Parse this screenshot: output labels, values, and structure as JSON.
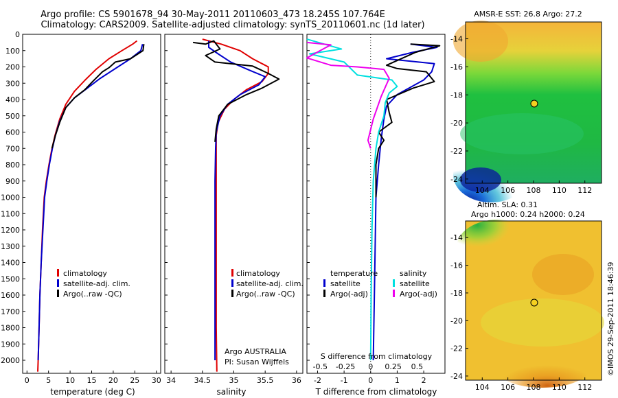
{
  "header": {
    "line1": "Argo profile: CS 5901678_94 30-May-2011 20110603_473 18.245S 107.764E",
    "line2": "Climatology: CARS2009. Satellite-adjusted climatology: synTS_20110601.nc (1d later)"
  },
  "credit": "©IMOS 29-Sep-2011 18:46:39",
  "colors": {
    "climatology": "#e00000",
    "satellite": "#0000cc",
    "argo": "#000000",
    "satellite_salinity": "#00e0e0",
    "argo_salinity": "#ee00ee"
  },
  "depth_axis": {
    "ylim": [
      0,
      2080
    ],
    "ticks": [
      0,
      100,
      200,
      300,
      400,
      500,
      600,
      700,
      800,
      900,
      1000,
      1100,
      1200,
      1300,
      1400,
      1500,
      1600,
      1700,
      1800,
      1900,
      2000
    ]
  },
  "chart_data": [
    {
      "type": "line",
      "panel": "temperature",
      "xlabel": "temperature (deg C)",
      "xlim": [
        -1,
        31
      ],
      "xticks": [
        0,
        5,
        10,
        15,
        20,
        25,
        30
      ],
      "legend": [
        "climatology",
        "satellite-adj. clim.",
        "Argo(..raw -QC)"
      ],
      "series": [
        {
          "name": "climatology",
          "color_key": "climatology",
          "points": [
            [
              25.5,
              40
            ],
            [
              24.5,
              60
            ],
            [
              22,
              100
            ],
            [
              19,
              150
            ],
            [
              16,
              215
            ],
            [
              13.5,
              280
            ],
            [
              11,
              350
            ],
            [
              9,
              430
            ],
            [
              7.6,
              520
            ],
            [
              6.5,
              620
            ],
            [
              5.8,
              700
            ],
            [
              5.1,
              800
            ],
            [
              4.5,
              900
            ],
            [
              4.0,
              1000
            ],
            [
              3.6,
              1200
            ],
            [
              3.3,
              1400
            ],
            [
              3.0,
              1600
            ],
            [
              2.8,
              1800
            ],
            [
              2.6,
              2000
            ],
            [
              2.5,
              2070
            ]
          ]
        },
        {
          "name": "satellite-adj. clim.",
          "color_key": "satellite",
          "points": [
            [
              26.8,
              60
            ],
            [
              26.4,
              100
            ],
            [
              24,
              150
            ],
            [
              20.5,
              210
            ],
            [
              17,
              270
            ],
            [
              14,
              330
            ],
            [
              11,
              390
            ],
            [
              9,
              450
            ],
            [
              7.5,
              540
            ],
            [
              6.6,
              620
            ],
            [
              5.9,
              700
            ],
            [
              5.2,
              800
            ],
            [
              4.6,
              900
            ],
            [
              4.1,
              1000
            ],
            [
              3.7,
              1200
            ],
            [
              3.3,
              1400
            ],
            [
              3.0,
              1600
            ],
            [
              2.8,
              1800
            ],
            [
              2.6,
              2000
            ]
          ]
        },
        {
          "name": "Argo(..raw -QC)",
          "color_key": "argo",
          "points": [
            [
              27.1,
              60
            ],
            [
              26.9,
              100
            ],
            [
              24,
              150
            ],
            [
              20.5,
              170
            ],
            [
              19,
              205
            ],
            [
              17.5,
              230
            ],
            [
              15.2,
              290
            ],
            [
              13.4,
              340
            ],
            [
              11,
              390
            ],
            [
              9,
              450
            ],
            [
              7.6,
              540
            ],
            [
              6.6,
              620
            ],
            [
              5.8,
              700
            ]
          ]
        }
      ]
    },
    {
      "type": "line",
      "panel": "salinity",
      "xlabel": "salinity",
      "xlim": [
        33.9,
        36.1
      ],
      "xticks": [
        34,
        34.5,
        35,
        35.5,
        36
      ],
      "legend": [
        "climatology",
        "satellite-adj. clim.",
        "Argo(..raw -QC)"
      ],
      "annotation": [
        "Argo AUSTRALIA",
        "PI: Susan Wijffels"
      ],
      "series": [
        {
          "name": "climatology",
          "color_key": "climatology",
          "points": [
            [
              34.5,
              30
            ],
            [
              34.8,
              60
            ],
            [
              35.1,
              100
            ],
            [
              35.3,
              150
            ],
            [
              35.55,
              200
            ],
            [
              35.55,
              240
            ],
            [
              35.45,
              290
            ],
            [
              35.2,
              340
            ],
            [
              35.0,
              400
            ],
            [
              34.85,
              460
            ],
            [
              34.75,
              540
            ],
            [
              34.72,
              620
            ],
            [
              34.72,
              700
            ],
            [
              34.72,
              900
            ],
            [
              34.72,
              1200
            ],
            [
              34.72,
              1500
            ],
            [
              34.72,
              1800
            ],
            [
              34.73,
              2070
            ]
          ]
        },
        {
          "name": "satellite-adj. clim.",
          "color_key": "satellite",
          "points": [
            [
              34.6,
              40
            ],
            [
              34.6,
              80
            ],
            [
              34.75,
              120
            ],
            [
              34.95,
              170
            ],
            [
              35.25,
              220
            ],
            [
              35.5,
              260
            ],
            [
              35.4,
              310
            ],
            [
              35.1,
              370
            ],
            [
              34.9,
              430
            ],
            [
              34.78,
              500
            ],
            [
              34.72,
              600
            ],
            [
              34.71,
              700
            ],
            [
              34.7,
              900
            ],
            [
              34.7,
              1200
            ],
            [
              34.7,
              1500
            ],
            [
              34.7,
              1800
            ],
            [
              34.7,
              2000
            ]
          ]
        },
        {
          "name": "Argo(..raw -QC)",
          "color_key": "argo",
          "points": [
            [
              34.35,
              50
            ],
            [
              34.55,
              60
            ],
            [
              34.68,
              40
            ],
            [
              34.78,
              90
            ],
            [
              34.55,
              130
            ],
            [
              34.7,
              170
            ],
            [
              35.3,
              195
            ],
            [
              35.55,
              240
            ],
            [
              35.72,
              275
            ],
            [
              35.45,
              330
            ],
            [
              35.2,
              370
            ],
            [
              34.9,
              430
            ],
            [
              34.76,
              500
            ],
            [
              34.72,
              580
            ],
            [
              34.7,
              660
            ]
          ]
        }
      ]
    },
    {
      "type": "line",
      "panel": "difference",
      "xlabel_top": "S difference from climatology",
      "xlabel": "T difference from climatology",
      "xlim": [
        -2.4,
        2.8
      ],
      "xticks_T": [
        -2,
        -1,
        0,
        1,
        2
      ],
      "xticks_S": [
        "-0.5",
        "-0.25",
        "0",
        "0.25",
        "0.5"
      ],
      "legend_temperature": [
        "temperature",
        "satellite",
        "Argo(-adj)"
      ],
      "legend_salinity": [
        "salinity",
        "satellite",
        "Argo(-adj)"
      ],
      "series": [
        {
          "name": "T satellite",
          "color_key": "satellite",
          "points": [
            [
              1.5,
              60
            ],
            [
              2.5,
              80
            ],
            [
              1.6,
              110
            ],
            [
              0.6,
              150
            ],
            [
              2.4,
              180
            ],
            [
              2.3,
              230
            ],
            [
              2.0,
              280
            ],
            [
              1.0,
              370
            ],
            [
              0.6,
              440
            ],
            [
              0.5,
              520
            ],
            [
              0.4,
              640
            ],
            [
              0.3,
              800
            ],
            [
              0.2,
              1000
            ],
            [
              0.15,
              1500
            ],
            [
              0.1,
              2000
            ]
          ]
        },
        {
          "name": "T Argo(-adj)",
          "color_key": "argo",
          "points": [
            [
              1.5,
              60
            ],
            [
              2.6,
              70
            ],
            [
              1.7,
              110
            ],
            [
              0.6,
              190
            ],
            [
              1.0,
              210
            ],
            [
              2.1,
              230
            ],
            [
              2.4,
              290
            ],
            [
              1.6,
              330
            ],
            [
              0.6,
              400
            ],
            [
              0.7,
              480
            ],
            [
              0.8,
              540
            ],
            [
              0.3,
              600
            ],
            [
              0.5,
              650
            ],
            [
              0.3,
              700
            ],
            [
              0.2,
              800
            ],
            [
              0.2,
              1000
            ]
          ]
        },
        {
          "name": "S satellite",
          "color_key": "satellite_salinity",
          "points": [
            [
              -2.4,
              30
            ],
            [
              -1.1,
              90
            ],
            [
              -2.3,
              120
            ],
            [
              -1.0,
              170
            ],
            [
              -0.5,
              250
            ],
            [
              0.8,
              280
            ],
            [
              1.0,
              320
            ],
            [
              0.7,
              360
            ],
            [
              0.55,
              420
            ],
            [
              0.5,
              500
            ],
            [
              0.3,
              600
            ],
            [
              0.2,
              700
            ],
            [
              0.1,
              900
            ],
            [
              0.05,
              1200
            ],
            [
              0.02,
              1600
            ],
            [
              0,
              2000
            ]
          ]
        },
        {
          "name": "S Argo(-adj)",
          "color_key": "argo_salinity",
          "points": [
            [
              -2.4,
              50
            ],
            [
              -1.5,
              65
            ],
            [
              -1.9,
              100
            ],
            [
              -2.4,
              145
            ],
            [
              -1.5,
              190
            ],
            [
              -0.5,
              200
            ],
            [
              0.5,
              215
            ],
            [
              0.7,
              270
            ],
            [
              0.4,
              380
            ],
            [
              0.1,
              520
            ],
            [
              -0.1,
              650
            ],
            [
              0.0,
              700
            ]
          ]
        }
      ]
    }
  ],
  "maps": [
    {
      "title": "AMSR-E SST: 26.8 Argo: 27.2",
      "xticks": [
        104,
        106,
        108,
        110,
        112
      ],
      "yticks": [
        -14,
        -16,
        -18,
        -20,
        -22,
        -24
      ]
    },
    {
      "title_line1": "Altim. SLA: 0.31",
      "title_line2": "Argo h1000: 0.24 h2000: 0.24",
      "xticks": [
        104,
        106,
        108,
        110,
        112
      ],
      "yticks": [
        -14,
        -16,
        -18,
        -20,
        -22,
        -24
      ]
    }
  ]
}
